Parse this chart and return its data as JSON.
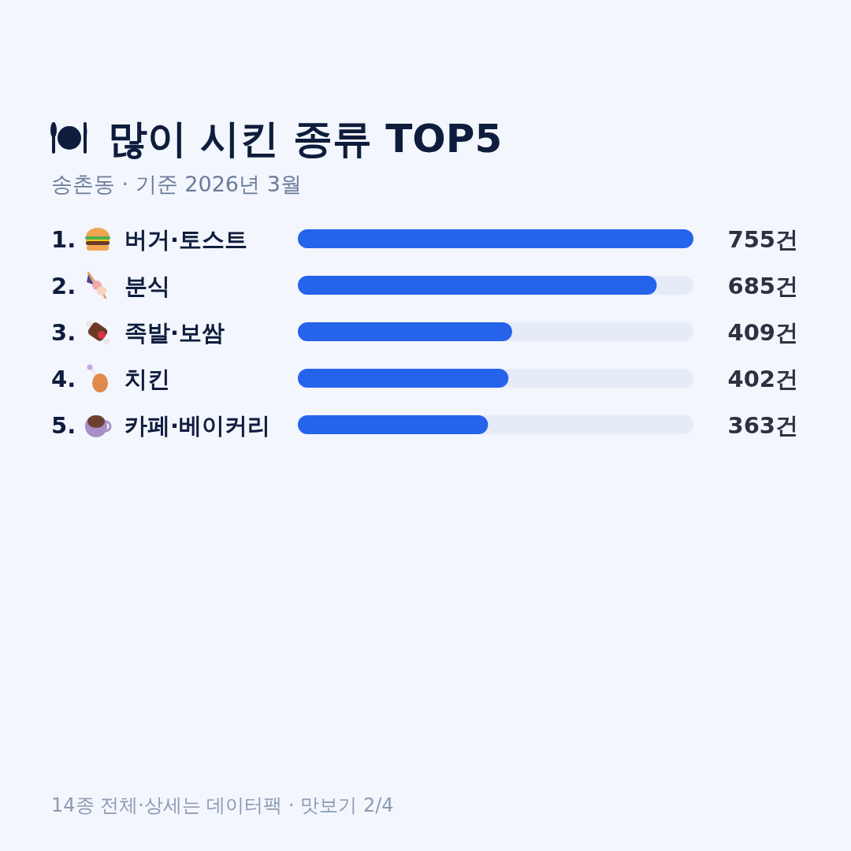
{
  "chart_data": {
    "type": "bar",
    "orientation": "horizontal",
    "title": "많이 시킨 종류 TOP5",
    "subtitle": "송촌동 · 기준 2026년 3월",
    "categories": [
      "버거·토스트",
      "분식",
      "족발·보쌈",
      "치킨",
      "카페·베이커리"
    ],
    "values": [
      755,
      685,
      409,
      402,
      363
    ],
    "value_labels": [
      "755건",
      "685건",
      "409건",
      "402건",
      "363건"
    ],
    "color": "#2563eb",
    "xlim": [
      0,
      755
    ],
    "annotations": [
      "1.",
      "2.",
      "3.",
      "4.",
      "5.",
      "14종 전체·상세는 데이터팩 · 맛보기 2/4"
    ]
  }
}
